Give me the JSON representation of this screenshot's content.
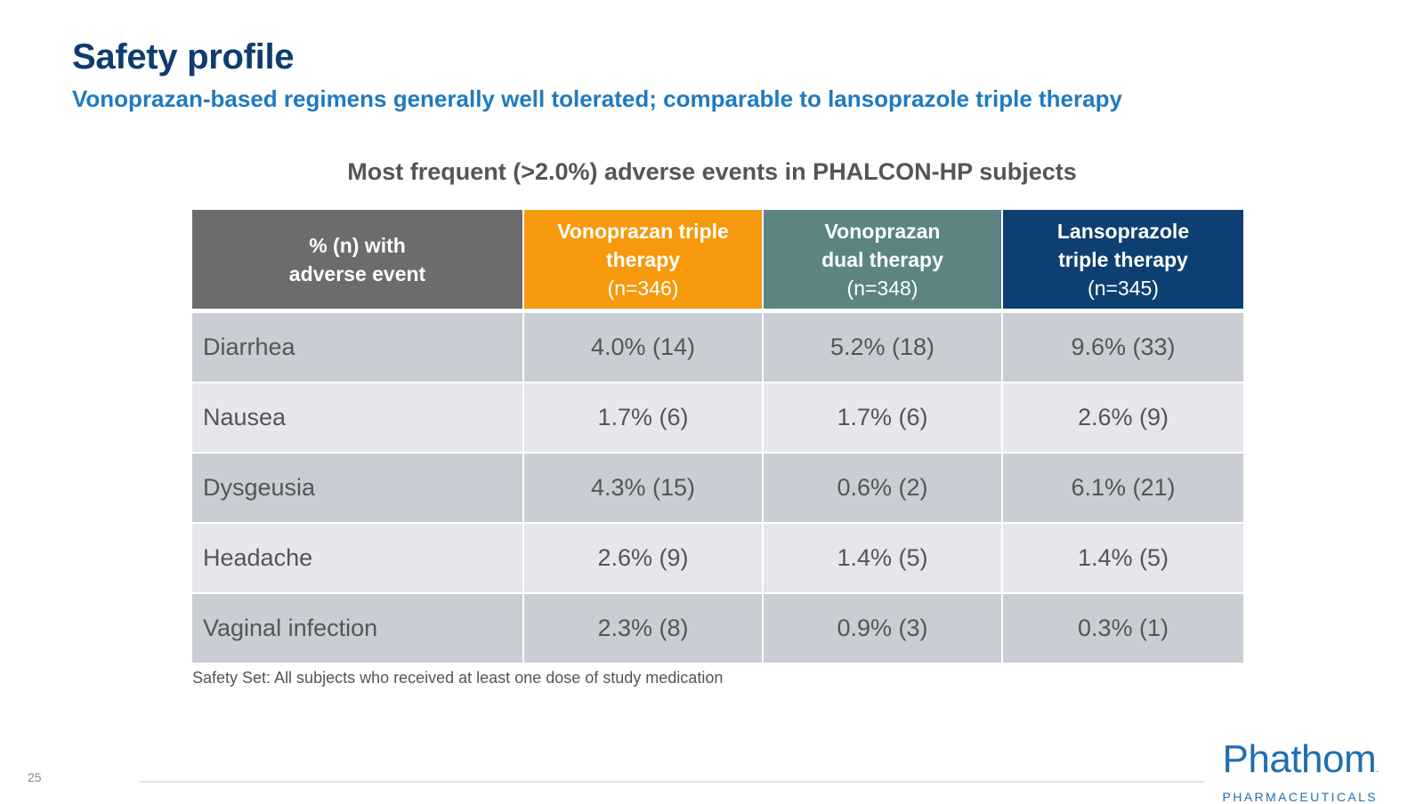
{
  "slide": {
    "title": "Safety profile",
    "subtitle": "Vonoprazan-based regimens generally well tolerated; comparable to lansoprazole triple therapy",
    "page_number": "25"
  },
  "table": {
    "title": "Most frequent (>2.0%) adverse events in PHALCON-HP subjects",
    "headers": [
      {
        "label": "% (n) with adverse event",
        "n": "",
        "color": "#6c6c6c"
      },
      {
        "label": "Vonoprazan triple therapy",
        "n": "(n=346)",
        "color": "#f7990c"
      },
      {
        "label": "Vonoprazan dual therapy",
        "n": "(n=348)",
        "color": "#5b8483"
      },
      {
        "label": "Lansoprazole triple therapy",
        "n": "(n=345)",
        "color": "#0e3f72"
      }
    ],
    "rows": [
      {
        "event": "Diarrhea",
        "vono_triple": "4.0% (14)",
        "vono_dual": "5.2% (18)",
        "lanso_triple": "9.6% (33)"
      },
      {
        "event": "Nausea",
        "vono_triple": "1.7% (6)",
        "vono_dual": "1.7% (6)",
        "lanso_triple": "2.6% (9)"
      },
      {
        "event": "Dysgeusia",
        "vono_triple": "4.3% (15)",
        "vono_dual": "0.6% (2)",
        "lanso_triple": "6.1% (21)"
      },
      {
        "event": "Headache",
        "vono_triple": "2.6% (9)",
        "vono_dual": "1.4% (5)",
        "lanso_triple": "1.4% (5)"
      },
      {
        "event": "Vaginal infection",
        "vono_triple": "2.3% (8)",
        "vono_dual": "0.9% (3)",
        "lanso_triple": "0.3% (1)"
      }
    ],
    "footnote": "Safety Set:  All subjects who received at least one dose of study medication"
  },
  "logo": {
    "name": "Phathom",
    "tagline": "PHARMACEUTICALS",
    "color": "#1f6fb2"
  }
}
